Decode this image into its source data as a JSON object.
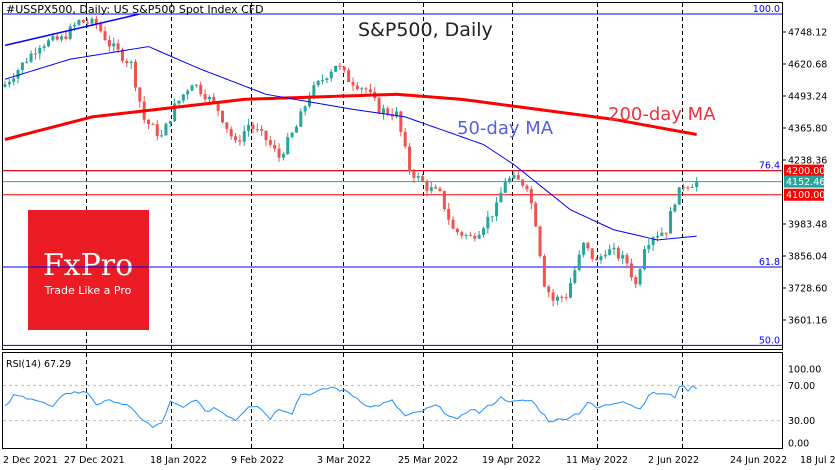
{
  "header": {
    "symbol_title": "#USSPX500, Daily:  US S&P500 Spot Index CFD"
  },
  "annotations": {
    "chart_title": "S&P500, Daily",
    "ma50_label": "50-day MA",
    "ma200_label": "200-day MA"
  },
  "logo": {
    "brand": "FxPro",
    "tagline": "Trade Like a Pro"
  },
  "colors": {
    "up": "#26a69a",
    "down": "#ef5350",
    "ma50": "#0000ff",
    "ma200": "#ff0000",
    "rsi": "#1e90ff",
    "level": "#ff0000",
    "current": "#26a69a",
    "logo_bg": "#ec1c24"
  },
  "chart_data": {
    "type": "candlestick",
    "title": "S&P500, Daily",
    "bars": 160,
    "ylim": [
      3480,
      4840
    ],
    "y_ticks": [
      "4748.12",
      "4620.68",
      "4493.24",
      "4365.80",
      "4238.36",
      "3983.48",
      "3856.04",
      "3728.60",
      "3601.16"
    ],
    "x_ticks": [
      {
        "bar": 0,
        "label": "2 Dec 2021"
      },
      {
        "bar": 19,
        "label": "27 Dec 2021"
      },
      {
        "bar": 38,
        "label": "18 Jan 2022"
      },
      {
        "bar": 57,
        "label": "9 Feb 2022"
      },
      {
        "bar": 78,
        "label": "3 Mar 2022"
      },
      {
        "bar": 97,
        "label": "25 Mar 2022"
      },
      {
        "bar": 116,
        "label": "19 Apr 2022"
      },
      {
        "bar": 137,
        "label": "11 May 2022"
      },
      {
        "bar": 157,
        "label": "2 Jun 2022"
      },
      {
        "bar": 176,
        "label": "24 Jun 2022"
      },
      {
        "bar": 195,
        "label": "18 Jul 2022"
      }
    ],
    "close_anchors": [
      [
        0,
        4540
      ],
      [
        3,
        4600
      ],
      [
        8,
        4700
      ],
      [
        13,
        4720
      ],
      [
        17,
        4790
      ],
      [
        21,
        4780
      ],
      [
        24,
        4700
      ],
      [
        29,
        4620
      ],
      [
        32,
        4400
      ],
      [
        36,
        4330
      ],
      [
        39,
        4450
      ],
      [
        43,
        4550
      ],
      [
        46,
        4500
      ],
      [
        49,
        4440
      ],
      [
        53,
        4300
      ],
      [
        56,
        4380
      ],
      [
        60,
        4320
      ],
      [
        63,
        4250
      ],
      [
        67,
        4370
      ],
      [
        70,
        4500
      ],
      [
        74,
        4580
      ],
      [
        76,
        4620
      ],
      [
        79,
        4560
      ],
      [
        83,
        4520
      ],
      [
        86,
        4440
      ],
      [
        90,
        4420
      ],
      [
        93,
        4200
      ],
      [
        97,
        4130
      ],
      [
        100,
        4100
      ],
      [
        103,
        3960
      ],
      [
        107,
        3930
      ],
      [
        109,
        3960
      ],
      [
        113,
        4050
      ],
      [
        115,
        4160
      ],
      [
        117,
        4160
      ],
      [
        120,
        4140
      ],
      [
        122,
        3990
      ],
      [
        124,
        3750
      ],
      [
        126,
        3680
      ],
      [
        129,
        3700
      ],
      [
        131,
        3800
      ],
      [
        133,
        3900
      ],
      [
        136,
        3830
      ],
      [
        138,
        3880
      ],
      [
        140,
        3870
      ],
      [
        143,
        3830
      ],
      [
        145,
        3740
      ],
      [
        147,
        3900
      ],
      [
        149,
        3940
      ],
      [
        152,
        3960
      ],
      [
        154,
        4080
      ],
      [
        156,
        4140
      ],
      [
        159,
        4150
      ]
    ],
    "ma50": [
      [
        0,
        4560
      ],
      [
        15,
        4640
      ],
      [
        33,
        4690
      ],
      [
        45,
        4600
      ],
      [
        60,
        4500
      ],
      [
        80,
        4440
      ],
      [
        92,
        4410
      ],
      [
        110,
        4300
      ],
      [
        117,
        4220
      ],
      [
        130,
        4040
      ],
      [
        140,
        3960
      ],
      [
        150,
        3920
      ],
      [
        159,
        3935
      ]
    ],
    "ma200": [
      [
        0,
        4320
      ],
      [
        20,
        4410
      ],
      [
        55,
        4480
      ],
      [
        90,
        4500
      ],
      [
        105,
        4480
      ],
      [
        140,
        4400
      ],
      [
        159,
        4340
      ]
    ],
    "channel": [
      [
        0,
        4695
      ],
      [
        31,
        4820
      ]
    ],
    "levels": [
      {
        "price": 4200.0,
        "label": "4200.00",
        "kind": "resistance"
      },
      {
        "price": 4152.46,
        "label": "4152.46",
        "kind": "current"
      },
      {
        "price": 4100.0,
        "label": "4100.00",
        "kind": "support"
      }
    ],
    "fibonacci": [
      {
        "level": "100.0",
        "price": 4820
      },
      {
        "level": "76.4",
        "price": 4196
      },
      {
        "level": "61.8",
        "price": 3812
      },
      {
        "level": "50.0",
        "price": 3500
      }
    ],
    "rsi": {
      "label": "RSI(14) 67.29",
      "ylim": [
        0,
        100
      ],
      "y_ticks": [
        "100.00",
        "70.00",
        "30.00",
        "0.00"
      ],
      "levels": [
        70,
        30
      ],
      "values": [
        [
          0,
          45
        ],
        [
          2,
          58
        ],
        [
          6,
          56
        ],
        [
          11,
          45
        ],
        [
          14,
          62
        ],
        [
          19,
          62
        ],
        [
          21,
          49
        ],
        [
          25,
          53
        ],
        [
          28,
          47
        ],
        [
          34,
          22
        ],
        [
          36,
          27
        ],
        [
          38,
          51
        ],
        [
          41,
          44
        ],
        [
          44,
          55
        ],
        [
          46,
          39
        ],
        [
          48,
          45
        ],
        [
          53,
          31
        ],
        [
          56,
          47
        ],
        [
          58,
          47
        ],
        [
          61,
          33
        ],
        [
          63,
          44
        ],
        [
          66,
          39
        ],
        [
          68,
          60
        ],
        [
          71,
          61
        ],
        [
          75,
          68
        ],
        [
          79,
          62
        ],
        [
          84,
          45
        ],
        [
          89,
          52
        ],
        [
          92,
          35
        ],
        [
          95,
          39
        ],
        [
          99,
          47
        ],
        [
          104,
          30
        ],
        [
          107,
          44
        ],
        [
          109,
          39
        ],
        [
          114,
          56
        ],
        [
          117,
          51
        ],
        [
          121,
          53
        ],
        [
          125,
          30
        ],
        [
          128,
          31
        ],
        [
          132,
          39
        ],
        [
          134,
          51
        ],
        [
          136,
          44
        ],
        [
          142,
          53
        ],
        [
          146,
          43
        ],
        [
          148,
          60
        ],
        [
          151,
          61
        ],
        [
          154,
          57
        ],
        [
          155,
          70
        ],
        [
          157,
          65
        ],
        [
          158,
          68
        ],
        [
          159,
          68
        ]
      ]
    }
  }
}
